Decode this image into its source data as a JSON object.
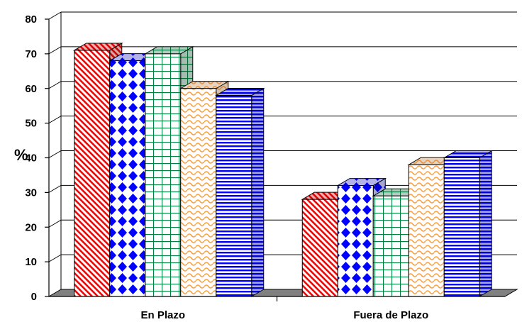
{
  "chart_data": {
    "type": "bar",
    "title": "",
    "xlabel": "",
    "ylabel": "%",
    "categories": [
      "En Plazo",
      "Fuera de Plazo"
    ],
    "series": [
      {
        "values": [
          71,
          28
        ],
        "color": "#ff0000",
        "pattern": "diagonal-stripes"
      },
      {
        "values": [
          68,
          32
        ],
        "color": "#0000ff",
        "pattern": "diamonds"
      },
      {
        "values": [
          70,
          29
        ],
        "color": "#008040",
        "pattern": "grid"
      },
      {
        "values": [
          60,
          38
        ],
        "color": "#ffa040",
        "pattern": "waves"
      },
      {
        "values": [
          58,
          40
        ],
        "color": "#0000ff",
        "pattern": "horizontal-stripes"
      }
    ],
    "ylim": [
      0,
      80
    ],
    "yticks": [
      "0",
      "10",
      "20",
      "30",
      "40",
      "50",
      "60",
      "70",
      "80"
    ],
    "grid": true,
    "legend": "none",
    "three_d": true
  }
}
